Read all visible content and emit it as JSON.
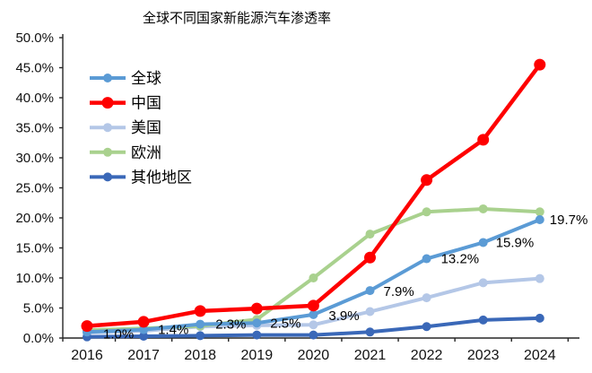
{
  "chart_data": {
    "type": "line",
    "title": "全球不同国家新能源汽车渗透率",
    "categories": [
      "2016",
      "2017",
      "2018",
      "2019",
      "2020",
      "2021",
      "2022",
      "2023",
      "2024"
    ],
    "series": [
      {
        "name": "全球",
        "color": "#5B9BD5",
        "values": [
          1.0,
          1.4,
          2.3,
          2.5,
          3.9,
          7.9,
          13.2,
          15.9,
          19.7
        ],
        "labels": [
          "1.0%",
          "1.4%",
          "2.3%",
          "2.5%",
          "3.9%",
          "7.9%",
          "13.2%",
          "15.9%",
          "19.7%"
        ]
      },
      {
        "name": "中国",
        "color": "#FE0000",
        "values": [
          2.0,
          2.7,
          4.5,
          4.9,
          5.4,
          13.4,
          26.3,
          33.0,
          45.5
        ]
      },
      {
        "name": "美国",
        "color": "#B4C7E7",
        "values": [
          0.9,
          1.2,
          1.9,
          2.1,
          2.2,
          4.4,
          6.7,
          9.2,
          9.9
        ]
      },
      {
        "name": "欧洲",
        "color": "#A9D18E",
        "values": [
          1.3,
          1.6,
          2.0,
          3.1,
          10.0,
          17.3,
          21.0,
          21.5,
          21.0
        ]
      },
      {
        "name": "其他地区",
        "color": "#3A68B8",
        "values": [
          0.2,
          0.3,
          0.4,
          0.5,
          0.5,
          1.0,
          1.9,
          3.0,
          3.3
        ]
      }
    ],
    "y_ticks": [
      "0.0%",
      "5.0%",
      "10.0%",
      "15.0%",
      "20.0%",
      "25.0%",
      "30.0%",
      "35.0%",
      "40.0%",
      "45.0%",
      "50.0%"
    ],
    "ylim": [
      0,
      50
    ],
    "grid": false,
    "legend_position": "upper-left-inside"
  }
}
